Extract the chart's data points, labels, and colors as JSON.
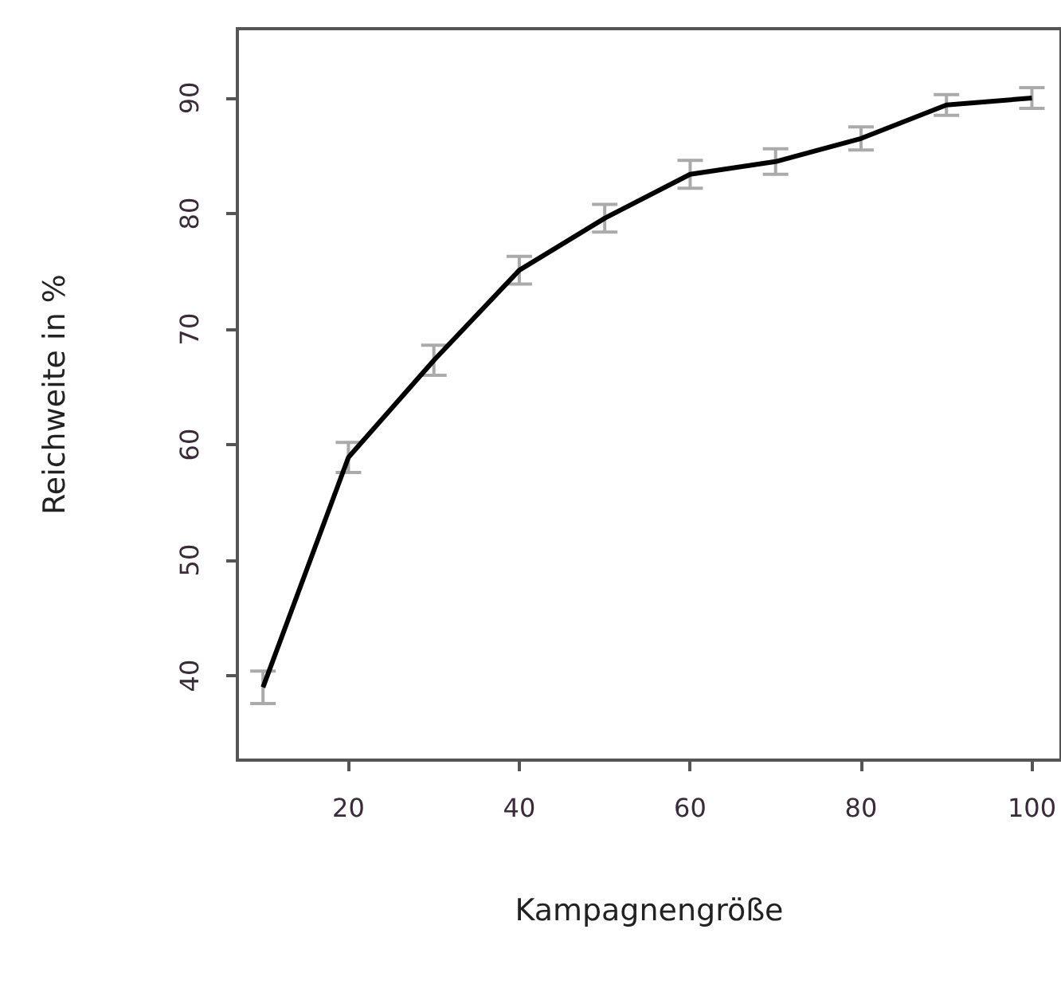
{
  "chart_data": {
    "type": "line",
    "xlabel": "Kampagnengröße",
    "ylabel": "Reichweite in %",
    "x": [
      10,
      20,
      30,
      40,
      50,
      60,
      70,
      80,
      90,
      100
    ],
    "series": [
      {
        "color": "#000000",
        "values": [
          39.0,
          58.9,
          67.3,
          75.1,
          79.6,
          83.4,
          84.5,
          86.5,
          89.4,
          90.0
        ],
        "errors": [
          1.4,
          1.3,
          1.3,
          1.2,
          1.2,
          1.2,
          1.1,
          1.0,
          0.9,
          0.9
        ]
      }
    ],
    "xlim": [
      7,
      103.4
    ],
    "xticks": [
      20,
      40,
      60,
      80,
      100
    ],
    "ylim": [
      32.7,
      96
    ],
    "yticks": [
      40,
      50,
      60,
      70,
      80,
      90
    ],
    "grid": false,
    "marker": "none",
    "line_style": "solid"
  }
}
